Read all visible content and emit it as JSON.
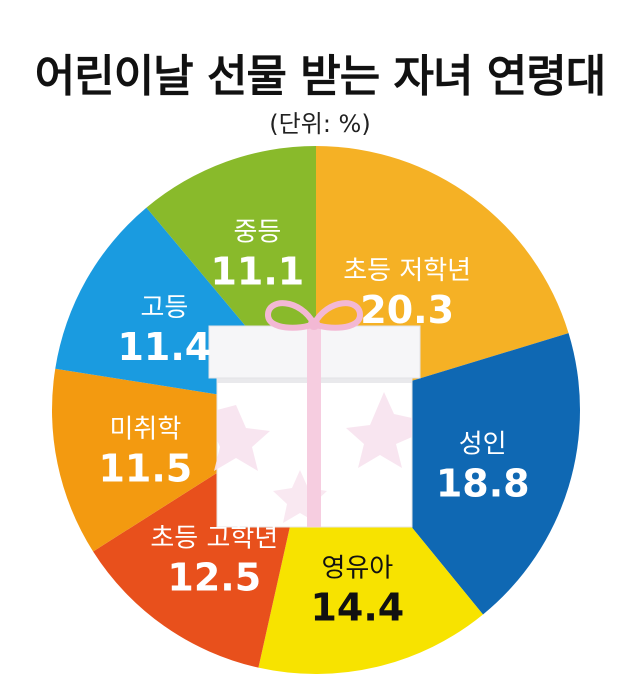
{
  "title": "어린이날 선물 받는 자녀 연령대",
  "subtitle": "(단위: %)",
  "chart_data": {
    "type": "pie",
    "unit": "%",
    "categories": [
      "초등 저학년",
      "성인",
      "영유아",
      "초등 고학년",
      "미취학",
      "고등",
      "중등"
    ],
    "values": [
      20.3,
      18.8,
      14.4,
      12.5,
      11.5,
      11.4,
      11.1
    ],
    "value_labels": [
      "20.3",
      "18.8",
      "14.4",
      "12.5",
      "11.5",
      "11.4",
      "11.1"
    ],
    "colors": [
      "#f5b125",
      "#0f68b3",
      "#f7e300",
      "#e8501c",
      "#f39a10",
      "#1a9be0",
      "#89ba2b"
    ],
    "label_colors": [
      "#ffffff",
      "#ffffff",
      "#111111",
      "#ffffff",
      "#ffffff",
      "#ffffff",
      "#ffffff"
    ],
    "start_angle_deg": 0,
    "direction": "clockwise",
    "legend": "none"
  }
}
